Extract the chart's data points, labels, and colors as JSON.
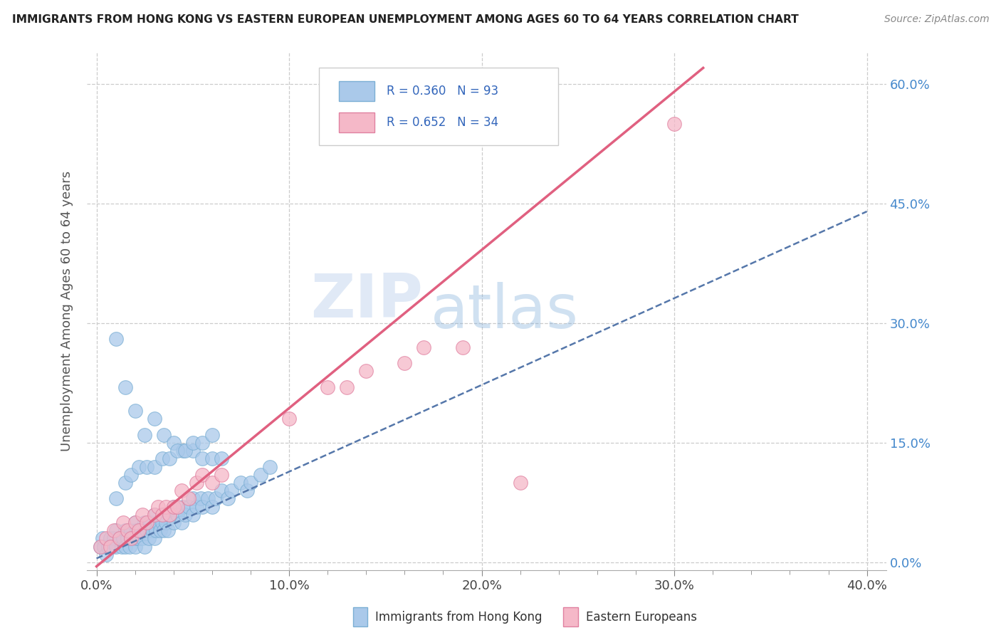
{
  "title": "IMMIGRANTS FROM HONG KONG VS EASTERN EUROPEAN UNEMPLOYMENT AMONG AGES 60 TO 64 YEARS CORRELATION CHART",
  "source": "Source: ZipAtlas.com",
  "ylabel": "Unemployment Among Ages 60 to 64 years",
  "xlabel_ticks": [
    "0.0%",
    "",
    "",
    "",
    "",
    "10.0%",
    "",
    "",
    "",
    "",
    "20.0%",
    "",
    "",
    "",
    "",
    "30.0%",
    "",
    "",
    "",
    "",
    "40.0%"
  ],
  "xlabel_vals": [
    0.0,
    0.02,
    0.04,
    0.06,
    0.08,
    0.1,
    0.12,
    0.14,
    0.16,
    0.18,
    0.2,
    0.22,
    0.24,
    0.26,
    0.28,
    0.3,
    0.32,
    0.34,
    0.36,
    0.38,
    0.4
  ],
  "xlabel_major_ticks": [
    0.0,
    0.1,
    0.2,
    0.3,
    0.4
  ],
  "xlabel_major_labels": [
    "0.0%",
    "10.0%",
    "20.0%",
    "30.0%",
    "40.0%"
  ],
  "ylabel_ticks": [
    "0.0%",
    "15.0%",
    "30.0%",
    "45.0%",
    "60.0%"
  ],
  "ylabel_vals": [
    0.0,
    0.15,
    0.3,
    0.45,
    0.6
  ],
  "xlim": [
    -0.005,
    0.41
  ],
  "ylim": [
    -0.01,
    0.64
  ],
  "watermark_zip": "ZIP",
  "watermark_atlas": "atlas",
  "blue_color": "#aac9ea",
  "blue_edge": "#7bafd4",
  "blue_line_color": "#5577aa",
  "pink_color": "#f5b8c8",
  "pink_edge": "#e080a0",
  "pink_line_color": "#e06080",
  "blue_scatter_x": [
    0.002,
    0.003,
    0.004,
    0.005,
    0.006,
    0.007,
    0.008,
    0.009,
    0.01,
    0.01,
    0.012,
    0.013,
    0.014,
    0.015,
    0.015,
    0.016,
    0.017,
    0.018,
    0.018,
    0.019,
    0.02,
    0.02,
    0.021,
    0.021,
    0.022,
    0.023,
    0.024,
    0.025,
    0.025,
    0.026,
    0.027,
    0.028,
    0.029,
    0.03,
    0.03,
    0.031,
    0.032,
    0.033,
    0.034,
    0.035,
    0.035,
    0.036,
    0.037,
    0.038,
    0.04,
    0.04,
    0.042,
    0.044,
    0.045,
    0.046,
    0.048,
    0.05,
    0.05,
    0.052,
    0.054,
    0.055,
    0.058,
    0.06,
    0.062,
    0.065,
    0.068,
    0.07,
    0.075,
    0.078,
    0.08,
    0.085,
    0.09,
    0.01,
    0.015,
    0.02,
    0.025,
    0.03,
    0.035,
    0.04,
    0.045,
    0.05,
    0.055,
    0.06,
    0.065,
    0.01,
    0.015,
    0.018,
    0.022,
    0.026,
    0.03,
    0.034,
    0.038,
    0.042,
    0.046,
    0.05,
    0.055,
    0.06
  ],
  "blue_scatter_y": [
    0.02,
    0.03,
    0.02,
    0.01,
    0.02,
    0.03,
    0.02,
    0.03,
    0.02,
    0.04,
    0.03,
    0.02,
    0.03,
    0.02,
    0.04,
    0.03,
    0.02,
    0.03,
    0.04,
    0.03,
    0.02,
    0.05,
    0.03,
    0.04,
    0.03,
    0.04,
    0.03,
    0.02,
    0.05,
    0.04,
    0.03,
    0.05,
    0.04,
    0.03,
    0.06,
    0.04,
    0.05,
    0.04,
    0.05,
    0.04,
    0.06,
    0.05,
    0.04,
    0.06,
    0.05,
    0.07,
    0.06,
    0.05,
    0.07,
    0.06,
    0.07,
    0.06,
    0.08,
    0.07,
    0.08,
    0.07,
    0.08,
    0.07,
    0.08,
    0.09,
    0.08,
    0.09,
    0.1,
    0.09,
    0.1,
    0.11,
    0.12,
    0.28,
    0.22,
    0.19,
    0.16,
    0.18,
    0.16,
    0.15,
    0.14,
    0.14,
    0.13,
    0.13,
    0.13,
    0.08,
    0.1,
    0.11,
    0.12,
    0.12,
    0.12,
    0.13,
    0.13,
    0.14,
    0.14,
    0.15,
    0.15,
    0.16
  ],
  "pink_scatter_x": [
    0.002,
    0.005,
    0.007,
    0.009,
    0.012,
    0.014,
    0.016,
    0.018,
    0.02,
    0.022,
    0.024,
    0.026,
    0.03,
    0.032,
    0.034,
    0.036,
    0.038,
    0.04,
    0.042,
    0.044,
    0.048,
    0.052,
    0.055,
    0.06,
    0.065,
    0.1,
    0.12,
    0.13,
    0.14,
    0.16,
    0.17,
    0.19,
    0.22,
    0.3
  ],
  "pink_scatter_y": [
    0.02,
    0.03,
    0.02,
    0.04,
    0.03,
    0.05,
    0.04,
    0.03,
    0.05,
    0.04,
    0.06,
    0.05,
    0.06,
    0.07,
    0.06,
    0.07,
    0.06,
    0.07,
    0.07,
    0.09,
    0.08,
    0.1,
    0.11,
    0.1,
    0.11,
    0.18,
    0.22,
    0.22,
    0.24,
    0.25,
    0.27,
    0.27,
    0.1,
    0.55
  ],
  "blue_line_x0": 0.0,
  "blue_line_x1": 0.4,
  "blue_line_y0": 0.005,
  "blue_line_y1": 0.44,
  "pink_line_x0": 0.0,
  "pink_line_x1": 0.315,
  "pink_line_y0": -0.005,
  "pink_line_y1": 0.62,
  "figsize": [
    14.06,
    8.92
  ],
  "dpi": 100
}
